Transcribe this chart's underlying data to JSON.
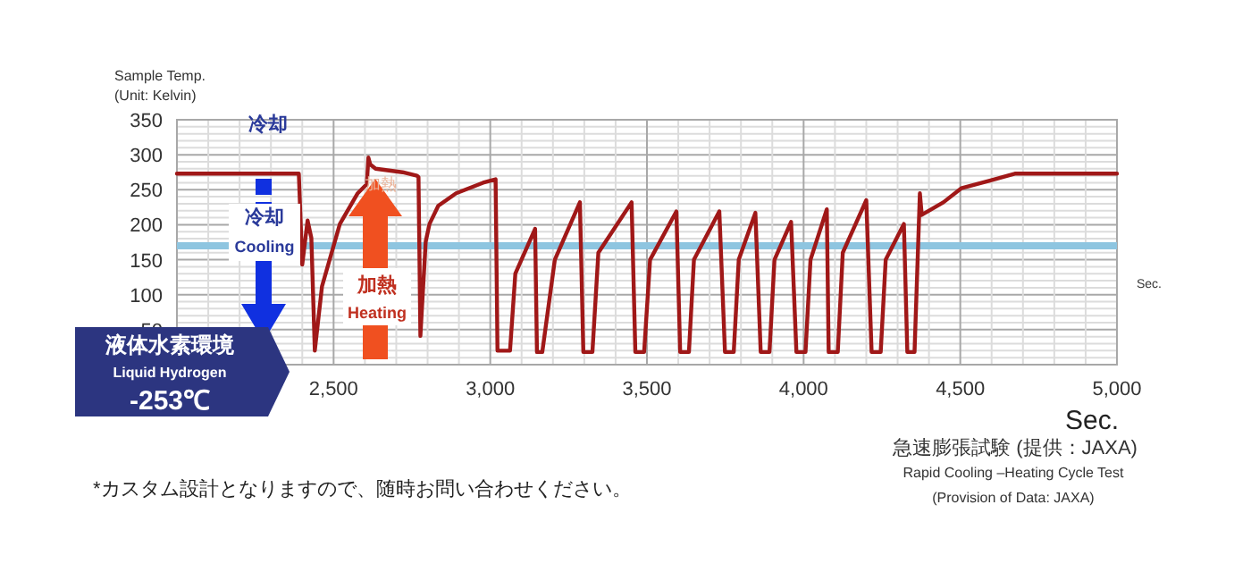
{
  "chart_data": {
    "type": "line",
    "ylabel": "Sample Temp.\n(Unit: Kelvin)",
    "xlabel": "Sec.",
    "xlim": [
      2000,
      5000
    ],
    "xticks": [
      {
        "value": 2000,
        "label": null
      },
      {
        "value": 2500,
        "label": "2,500"
      },
      {
        "value": 3000,
        "label": "3,000"
      },
      {
        "value": 3500,
        "label": "3,500"
      },
      {
        "value": 4000,
        "label": "4,000"
      },
      {
        "value": 4500,
        "label": "4,500"
      },
      {
        "value": 5000,
        "label": "5,000"
      }
    ],
    "ylim": [
      0,
      350
    ],
    "yticks": [
      {
        "value": 0,
        "label": null
      },
      50,
      100,
      150,
      200,
      250,
      300,
      350
    ],
    "grid": true,
    "marker": "none",
    "line_style": "solid",
    "ref_lines": [
      {
        "axis": "y",
        "value": 170,
        "label": null,
        "color": "#8ec5e0"
      }
    ],
    "series": [
      {
        "color": "#a01818",
        "x": [
          2000,
          2389,
          2400,
          2417,
          2429,
          2440,
          2463,
          2520,
          2577,
          2606,
          2611,
          2617,
          2634,
          2720,
          2766,
          2771,
          2777,
          2794,
          2806,
          2834,
          2891,
          2977,
          3017,
          3023,
          3034,
          3063,
          3080,
          3143,
          3149,
          3166,
          3206,
          3286,
          3297,
          3326,
          3345,
          3451,
          3463,
          3491,
          3510,
          3594,
          3606,
          3634,
          3650,
          3731,
          3749,
          3777,
          3793,
          3846,
          3863,
          3891,
          3907,
          3960,
          3977,
          4006,
          4022,
          4074,
          4080,
          4109,
          4125,
          4200,
          4217,
          4246,
          4262,
          4320,
          4331,
          4354,
          4371,
          4377,
          4446,
          4503,
          4594,
          4674,
          5000
        ],
        "values": [
          273,
          273,
          143,
          206,
          181,
          20,
          112,
          201,
          245,
          258,
          296,
          286,
          280,
          275,
          270,
          268,
          41,
          176,
          201,
          227,
          245,
          260,
          265,
          20,
          20,
          20,
          130,
          194,
          18,
          18,
          150,
          232,
          18,
          18,
          160,
          232,
          18,
          18,
          150,
          219,
          18,
          18,
          150,
          219,
          18,
          18,
          150,
          217,
          18,
          18,
          150,
          204,
          18,
          18,
          150,
          222,
          18,
          18,
          160,
          235,
          18,
          18,
          150,
          201,
          18,
          18,
          245,
          214,
          232,
          252,
          263,
          273,
          273
        ]
      }
    ],
    "annotations": [
      "冷却",
      "冷却",
      "Cooling",
      "加熱",
      "加熱",
      "Heating",
      "液体水素環境",
      "Liquid Hydrogen",
      "-253℃",
      "Sec.",
      "急速膨張試験 (提供：JAXA)",
      "Rapid Cooling –Heating Cycle Test",
      "(Provision of Data: JAXA)",
      "*カスタム設計となりますので、随時お問い合わせください。"
    ]
  }
}
